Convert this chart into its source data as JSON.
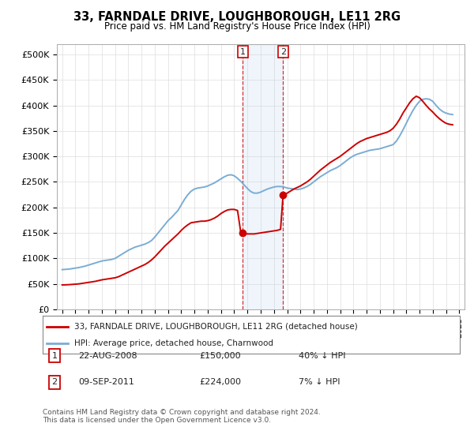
{
  "title": "33, FARNDALE DRIVE, LOUGHBOROUGH, LE11 2RG",
  "subtitle": "Price paid vs. HM Land Registry's House Price Index (HPI)",
  "ylabel_ticks": [
    "£0",
    "£50K",
    "£100K",
    "£150K",
    "£200K",
    "£250K",
    "£300K",
    "£350K",
    "£400K",
    "£450K",
    "£500K"
  ],
  "ytick_vals": [
    0,
    50000,
    100000,
    150000,
    200000,
    250000,
    300000,
    350000,
    400000,
    450000,
    500000
  ],
  "ylim": [
    0,
    520000
  ],
  "xlim_start": 1994.6,
  "xlim_end": 2025.4,
  "legend_line1": "33, FARNDALE DRIVE, LOUGHBOROUGH, LE11 2RG (detached house)",
  "legend_line2": "HPI: Average price, detached house, Charnwood",
  "line1_color": "#cc0000",
  "line2_color": "#7aadd4",
  "transaction1_date": "22-AUG-2008",
  "transaction1_price": "£150,000",
  "transaction1_hpi": "40% ↓ HPI",
  "transaction2_date": "09-SEP-2011",
  "transaction2_price": "£224,000",
  "transaction2_hpi": "7% ↓ HPI",
  "footer": "Contains HM Land Registry data © Crown copyright and database right 2024.\nThis data is licensed under the Open Government Licence v3.0.",
  "shade_x1": 2008.65,
  "shade_x2": 2011.69,
  "vline1_x": 2008.65,
  "vline2_x": 2011.69,
  "marker1_x": 2008.65,
  "marker1_y": 150000,
  "marker2_x": 2011.69,
  "marker2_y": 224000,
  "hpi_years": [
    1995.0,
    1995.25,
    1995.5,
    1995.75,
    1996.0,
    1996.25,
    1996.5,
    1996.75,
    1997.0,
    1997.25,
    1997.5,
    1997.75,
    1998.0,
    1998.25,
    1998.5,
    1998.75,
    1999.0,
    1999.25,
    1999.5,
    1999.75,
    2000.0,
    2000.25,
    2000.5,
    2000.75,
    2001.0,
    2001.25,
    2001.5,
    2001.75,
    2002.0,
    2002.25,
    2002.5,
    2002.75,
    2003.0,
    2003.25,
    2003.5,
    2003.75,
    2004.0,
    2004.25,
    2004.5,
    2004.75,
    2005.0,
    2005.25,
    2005.5,
    2005.75,
    2006.0,
    2006.25,
    2006.5,
    2006.75,
    2007.0,
    2007.25,
    2007.5,
    2007.75,
    2008.0,
    2008.25,
    2008.5,
    2008.75,
    2009.0,
    2009.25,
    2009.5,
    2009.75,
    2010.0,
    2010.25,
    2010.5,
    2010.75,
    2011.0,
    2011.25,
    2011.5,
    2011.75,
    2012.0,
    2012.25,
    2012.5,
    2012.75,
    2013.0,
    2013.25,
    2013.5,
    2013.75,
    2014.0,
    2014.25,
    2014.5,
    2014.75,
    2015.0,
    2015.25,
    2015.5,
    2015.75,
    2016.0,
    2016.25,
    2016.5,
    2016.75,
    2017.0,
    2017.25,
    2017.5,
    2017.75,
    2018.0,
    2018.25,
    2018.5,
    2018.75,
    2019.0,
    2019.25,
    2019.5,
    2019.75,
    2020.0,
    2020.25,
    2020.5,
    2020.75,
    2021.0,
    2021.25,
    2021.5,
    2021.75,
    2022.0,
    2022.25,
    2022.5,
    2022.75,
    2023.0,
    2023.25,
    2023.5,
    2023.75,
    2024.0,
    2024.25,
    2024.5
  ],
  "hpi_values": [
    78000,
    78500,
    79000,
    80000,
    81000,
    82000,
    83500,
    85000,
    87000,
    89000,
    91000,
    93000,
    95000,
    96000,
    97000,
    98000,
    100000,
    104000,
    108000,
    112000,
    116000,
    119000,
    122000,
    124000,
    126000,
    128000,
    131000,
    135000,
    142000,
    150000,
    158000,
    166000,
    174000,
    180000,
    187000,
    194000,
    205000,
    216000,
    225000,
    232000,
    236000,
    238000,
    239000,
    240000,
    242000,
    245000,
    248000,
    252000,
    256000,
    260000,
    263000,
    264000,
    262000,
    257000,
    251000,
    244000,
    237000,
    231000,
    228000,
    228000,
    230000,
    233000,
    236000,
    238000,
    240000,
    241000,
    241000,
    240000,
    238000,
    237000,
    236000,
    235000,
    236000,
    238000,
    241000,
    245000,
    250000,
    255000,
    260000,
    264000,
    268000,
    272000,
    275000,
    278000,
    282000,
    287000,
    292000,
    297000,
    301000,
    304000,
    306000,
    308000,
    310000,
    312000,
    313000,
    314000,
    315000,
    317000,
    319000,
    321000,
    323000,
    330000,
    340000,
    352000,
    365000,
    378000,
    390000,
    400000,
    408000,
    412000,
    413000,
    412000,
    408000,
    400000,
    393000,
    388000,
    385000,
    383000,
    382000
  ],
  "red_years": [
    1995.0,
    1995.25,
    1995.5,
    1995.75,
    1996.0,
    1996.25,
    1996.5,
    1996.75,
    1997.0,
    1997.25,
    1997.5,
    1997.75,
    1998.0,
    1998.25,
    1998.5,
    1998.75,
    1999.0,
    1999.25,
    1999.5,
    1999.75,
    2000.0,
    2000.25,
    2000.5,
    2000.75,
    2001.0,
    2001.25,
    2001.5,
    2001.75,
    2002.0,
    2002.25,
    2002.5,
    2002.75,
    2003.0,
    2003.25,
    2003.5,
    2003.75,
    2004.0,
    2004.25,
    2004.5,
    2004.75,
    2005.0,
    2005.25,
    2005.5,
    2005.75,
    2006.0,
    2006.25,
    2006.5,
    2006.75,
    2007.0,
    2007.25,
    2007.5,
    2007.75,
    2008.0,
    2008.25,
    2008.5,
    2008.65,
    2008.75,
    2009.0,
    2009.25,
    2009.5,
    2009.75,
    2010.0,
    2010.25,
    2010.5,
    2010.75,
    2011.0,
    2011.25,
    2011.5,
    2011.69,
    2011.75,
    2012.0,
    2012.25,
    2012.5,
    2012.75,
    2013.0,
    2013.25,
    2013.5,
    2013.75,
    2014.0,
    2014.25,
    2014.5,
    2014.75,
    2015.0,
    2015.25,
    2015.5,
    2015.75,
    2016.0,
    2016.25,
    2016.5,
    2016.75,
    2017.0,
    2017.25,
    2017.5,
    2017.75,
    2018.0,
    2018.25,
    2018.5,
    2018.75,
    2019.0,
    2019.25,
    2019.5,
    2019.75,
    2020.0,
    2020.25,
    2020.5,
    2020.75,
    2021.0,
    2021.25,
    2021.5,
    2021.75,
    2022.0,
    2022.25,
    2022.5,
    2022.75,
    2023.0,
    2023.25,
    2023.5,
    2023.75,
    2024.0,
    2024.25,
    2024.5
  ],
  "red_values": [
    48000,
    48200,
    48500,
    49000,
    49500,
    50000,
    51000,
    52000,
    53000,
    54000,
    55000,
    56500,
    58000,
    59000,
    60000,
    61000,
    62000,
    64000,
    67000,
    70000,
    73000,
    76000,
    79000,
    82000,
    85000,
    88000,
    92000,
    97000,
    103000,
    110000,
    117000,
    124000,
    130000,
    136000,
    142000,
    148000,
    155000,
    161000,
    166000,
    170000,
    171000,
    172000,
    173000,
    173000,
    174000,
    176000,
    179000,
    183000,
    188000,
    192000,
    195000,
    196000,
    196000,
    194000,
    150000,
    150000,
    149000,
    148000,
    148000,
    148000,
    149000,
    150000,
    151000,
    152000,
    153000,
    154000,
    155000,
    157000,
    224000,
    225000,
    228000,
    232000,
    236000,
    239000,
    242000,
    246000,
    250000,
    255000,
    261000,
    267000,
    273000,
    278000,
    283000,
    288000,
    292000,
    296000,
    300000,
    305000,
    310000,
    315000,
    320000,
    325000,
    329000,
    332000,
    335000,
    337000,
    339000,
    341000,
    343000,
    345000,
    347000,
    350000,
    355000,
    363000,
    373000,
    385000,
    395000,
    405000,
    413000,
    418000,
    415000,
    408000,
    400000,
    393000,
    387000,
    380000,
    374000,
    369000,
    365000,
    363000,
    362000
  ]
}
